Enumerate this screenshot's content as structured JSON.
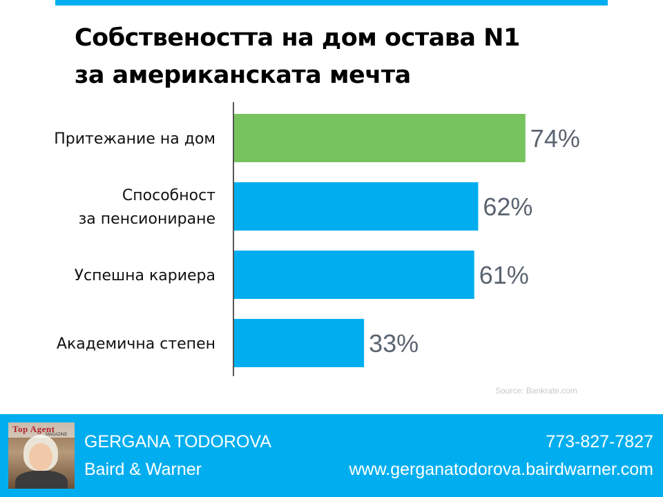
{
  "title_lines": [
    "Собствеността на дом остава N1",
    "за американската мечта"
  ],
  "source": "Source: Bankrate.com",
  "chart_data": {
    "type": "bar",
    "orientation": "horizontal",
    "categories": [
      [
        "Притежание на дом"
      ],
      [
        "Способност",
        "за пенсиониране"
      ],
      [
        "Успешна кариера"
      ],
      [
        "Академична степен"
      ]
    ],
    "values": [
      74,
      62,
      61,
      33
    ],
    "value_labels": [
      "74%",
      "62%",
      "61%",
      "33%"
    ],
    "bar_colors": [
      "#77c35e",
      "#00aeef",
      "#00aeef",
      "#00aeef"
    ],
    "xlim": [
      0,
      100
    ],
    "grid": false,
    "legend": "none"
  },
  "footer": {
    "name": "GERGANA TODOROVA",
    "company": "Baird & Warner",
    "phone": "773-827-7827",
    "website": "www.gergana todorova.bairdwarner.com",
    "photo_magazine": "Top Agent",
    "photo_magazine_sub": "MAGAZINE",
    "background": "#00aeef"
  }
}
